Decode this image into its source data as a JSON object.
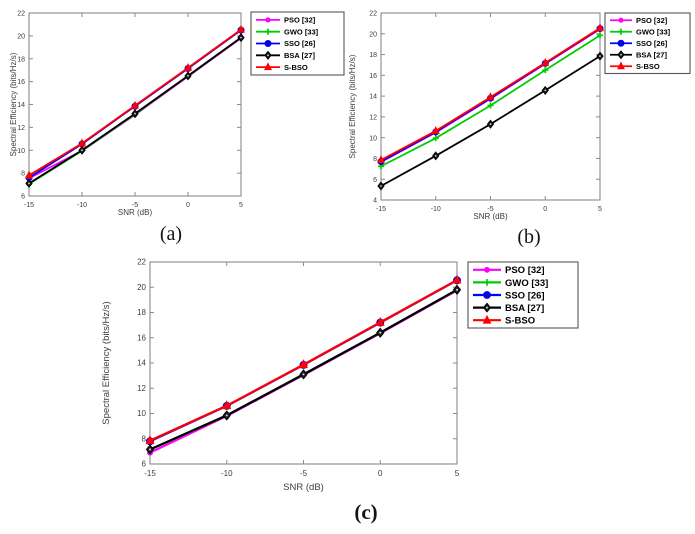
{
  "figure": {
    "background": "#ffffff",
    "axis_color": "#8a8a8a",
    "text_color": "#3d3d3d",
    "legend_border_color": "#555555",
    "legend_text_color": "#000000"
  },
  "chart_data": [
    {
      "id": "a",
      "type": "line",
      "caption": "(a)",
      "title": "",
      "xlabel": "SNR (dB)",
      "ylabel": "Spectral Efficiency (bits/Hz/s)",
      "x": [
        -15,
        -10,
        -5,
        0,
        5
      ],
      "xlim": [
        -15,
        5
      ],
      "ylim": [
        6,
        22
      ],
      "xticks": [
        -15,
        -10,
        -5,
        0,
        5
      ],
      "yticks": [
        6,
        8,
        10,
        12,
        14,
        16,
        18,
        20,
        22
      ],
      "grid": false,
      "legend_position": "outside-top-right",
      "series": [
        {
          "name": "PSO [32]",
          "color": "#ff00ff",
          "marker": "dot",
          "values": [
            7.55,
            9.95,
            13.1,
            16.45,
            19.8
          ]
        },
        {
          "name": "GWO [33]",
          "color": "#00cc00",
          "marker": "plus",
          "values": [
            7.05,
            9.95,
            13.15,
            16.5,
            19.85
          ]
        },
        {
          "name": "SSO [26]",
          "color": "#0000ff",
          "marker": "circle",
          "values": [
            7.6,
            10.55,
            13.85,
            17.15,
            20.5
          ]
        },
        {
          "name": "BSA [27]",
          "color": "#000000",
          "marker": "diamond",
          "values": [
            7.1,
            10.0,
            13.2,
            16.5,
            19.85
          ]
        },
        {
          "name": "S-BSO",
          "color": "#ff0000",
          "marker": "triangle",
          "values": [
            7.8,
            10.6,
            13.9,
            17.2,
            20.55
          ]
        }
      ]
    },
    {
      "id": "b",
      "type": "line",
      "caption": "(b)",
      "title": "",
      "xlabel": "SNR (dB)",
      "ylabel": "Spectral Efficiency (bits/Hz/s)",
      "x": [
        -15,
        -10,
        -5,
        0,
        5
      ],
      "xlim": [
        -15,
        5
      ],
      "ylim": [
        4,
        22
      ],
      "xticks": [
        -15,
        -10,
        -5,
        0,
        5
      ],
      "yticks": [
        4,
        6,
        8,
        10,
        12,
        14,
        16,
        18,
        20,
        22
      ],
      "grid": false,
      "legend_position": "outside-top-right",
      "series": [
        {
          "name": "PSO [32]",
          "color": "#ff00ff",
          "marker": "dot",
          "values": [
            7.65,
            10.5,
            13.75,
            17.1,
            20.45
          ]
        },
        {
          "name": "GWO [33]",
          "color": "#00cc00",
          "marker": "plus",
          "values": [
            7.25,
            9.95,
            13.1,
            16.5,
            19.85
          ]
        },
        {
          "name": "SSO [26]",
          "color": "#0000ff",
          "marker": "circle",
          "values": [
            7.7,
            10.55,
            13.8,
            17.15,
            20.5
          ]
        },
        {
          "name": "BSA [27]",
          "color": "#000000",
          "marker": "diamond",
          "values": [
            5.35,
            8.25,
            11.3,
            14.55,
            17.85
          ]
        },
        {
          "name": "S-BSO",
          "color": "#ff0000",
          "marker": "triangle",
          "values": [
            7.85,
            10.65,
            13.9,
            17.2,
            20.55
          ]
        }
      ]
    },
    {
      "id": "c",
      "type": "line",
      "caption": "(c)",
      "title": "",
      "xlabel": "SNR (dB)",
      "ylabel": "Spectral Efficiency (bits/Hz/s)",
      "x": [
        -15,
        -10,
        -5,
        0,
        5
      ],
      "xlim": [
        -15,
        5
      ],
      "ylim": [
        6,
        22
      ],
      "xticks": [
        -15,
        -10,
        -5,
        0,
        5
      ],
      "yticks": [
        6,
        8,
        10,
        12,
        14,
        16,
        18,
        20,
        22
      ],
      "grid": false,
      "legend_position": "outside-top-right",
      "series": [
        {
          "name": "PSO [32]",
          "color": "#ff00ff",
          "marker": "dot",
          "values": [
            6.9,
            9.8,
            13.05,
            16.35,
            19.75
          ]
        },
        {
          "name": "GWO [33]",
          "color": "#00cc00",
          "marker": "plus",
          "values": [
            7.15,
            9.85,
            13.1,
            16.4,
            19.8
          ]
        },
        {
          "name": "SSO [26]",
          "color": "#0000ff",
          "marker": "circle",
          "values": [
            7.8,
            10.6,
            13.85,
            17.2,
            20.55
          ]
        },
        {
          "name": "BSA [27]",
          "color": "#000000",
          "marker": "diamond",
          "values": [
            7.15,
            9.85,
            13.1,
            16.4,
            19.8
          ]
        },
        {
          "name": "S-BSO",
          "color": "#ff0000",
          "marker": "triangle",
          "values": [
            7.85,
            10.62,
            13.87,
            17.22,
            20.57
          ]
        }
      ]
    }
  ]
}
